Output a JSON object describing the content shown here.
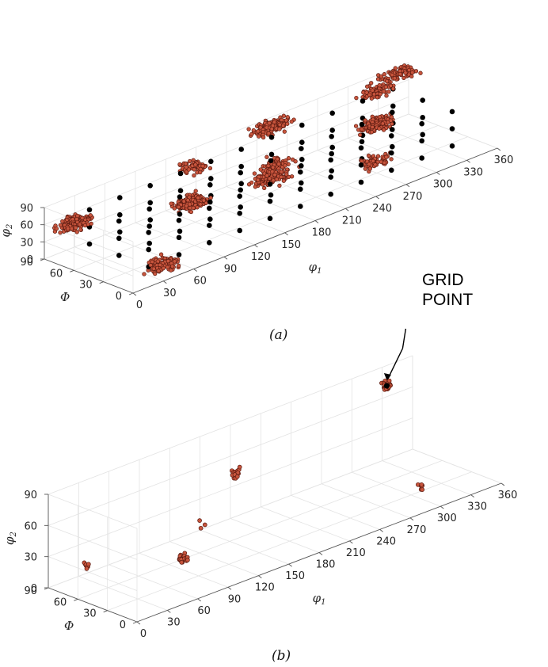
{
  "panels": [
    {
      "id": "a",
      "caption": "(a)",
      "axis_labels": {
        "phi1": "φ1",
        "Phi": "Φ",
        "phi2": "φ2"
      },
      "phi1_ticks": [
        "0",
        "30",
        "60",
        "90",
        "120",
        "150",
        "180",
        "210",
        "240",
        "270",
        "300",
        "330",
        "360"
      ],
      "Phi_ticks": [
        "0",
        "30",
        "60",
        "90"
      ],
      "phi2_ticks": [
        "0",
        "30",
        "60",
        "90"
      ]
    },
    {
      "id": "b",
      "caption": "(b)",
      "axis_labels": {
        "phi1": "φ1",
        "Phi": "Φ",
        "phi2": "φ2"
      },
      "phi1_ticks": [
        "0",
        "30",
        "60",
        "90",
        "120",
        "150",
        "180",
        "210",
        "240",
        "270",
        "300",
        "330",
        "360"
      ],
      "Phi_ticks": [
        "0",
        "30",
        "60",
        "90"
      ],
      "phi2_ticks": [
        "0",
        "30",
        "60",
        "90"
      ],
      "annotation": "GRID POINT"
    }
  ],
  "colors": {
    "scatter_fill": "#c8553d",
    "scatter_edge": "#5a1a10",
    "grid_point": "#000000"
  },
  "chart_data": [
    {
      "type": "scatter",
      "panel": "a",
      "projection": "3d",
      "xlabel": "φ1",
      "ylabel": "Φ",
      "zlabel": "φ2",
      "xlim": [
        0,
        360
      ],
      "ylim": [
        0,
        90
      ],
      "zlim": [
        0,
        90
      ],
      "grid": true,
      "series": [
        {
          "marker": "red-circle",
          "clusters": [
            {
              "phi1": 20,
              "Phi": 80,
              "phi2": 55,
              "count": 160
            },
            {
              "phi1": 40,
              "Phi": 10,
              "phi2": 15,
              "count": 110
            },
            {
              "phi1": 110,
              "Phi": 55,
              "phi2": 45,
              "count": 130
            },
            {
              "phi1": 140,
              "Phi": 80,
              "phi2": 70,
              "count": 60
            },
            {
              "phi1": 200,
              "Phi": 60,
              "phi2": 45,
              "count": 70
            },
            {
              "phi1": 220,
              "Phi": 85,
              "phi2": 80,
              "count": 150
            },
            {
              "phi1": 260,
              "Phi": 20,
              "phi2": 35,
              "count": 60
            },
            {
              "phi1": 300,
              "Phi": 60,
              "phi2": 45,
              "count": 130
            },
            {
              "phi1": 320,
              "Phi": 80,
              "phi2": 75,
              "count": 70
            },
            {
              "phi1": 345,
              "Phi": 85,
              "phi2": 85,
              "count": 90
            },
            {
              "phi1": 180,
              "Phi": 45,
              "phi2": 45,
              "count": 150
            }
          ]
        },
        {
          "marker": "black-dot",
          "phi1_values": [
            30,
            60,
            90,
            120,
            150,
            180,
            210,
            240,
            270,
            300,
            330
          ],
          "Phi_values": [
            15,
            45,
            75
          ],
          "phi2_values": [
            15,
            45,
            75
          ]
        }
      ]
    },
    {
      "type": "scatter",
      "panel": "b",
      "projection": "3d",
      "xlabel": "φ1",
      "ylabel": "Φ",
      "zlabel": "φ2",
      "xlim": [
        0,
        360
      ],
      "ylim": [
        0,
        90
      ],
      "zlim": [
        0,
        90
      ],
      "grid": true,
      "series": [
        {
          "marker": "red-circle",
          "clusters": [
            {
              "phi1": 10,
              "Phi": 60,
              "phi2": 30,
              "count": 8
            },
            {
              "phi1": 80,
              "Phi": 15,
              "phi2": 60,
              "count": 3
            },
            {
              "phi1": 85,
              "Phi": 40,
              "phi2": 15,
              "count": 30
            },
            {
              "phi1": 180,
              "Phi": 85,
              "phi2": 45,
              "count": 22
            },
            {
              "phi1": 295,
              "Phi": 15,
              "phi2": 15,
              "count": 7
            },
            {
              "phi1": 315,
              "Phi": 70,
              "phi2": 85,
              "count": 30
            }
          ]
        },
        {
          "marker": "black-dot",
          "points": [
            {
              "phi1": 315,
              "Phi": 70,
              "phi2": 85
            }
          ]
        }
      ]
    }
  ]
}
